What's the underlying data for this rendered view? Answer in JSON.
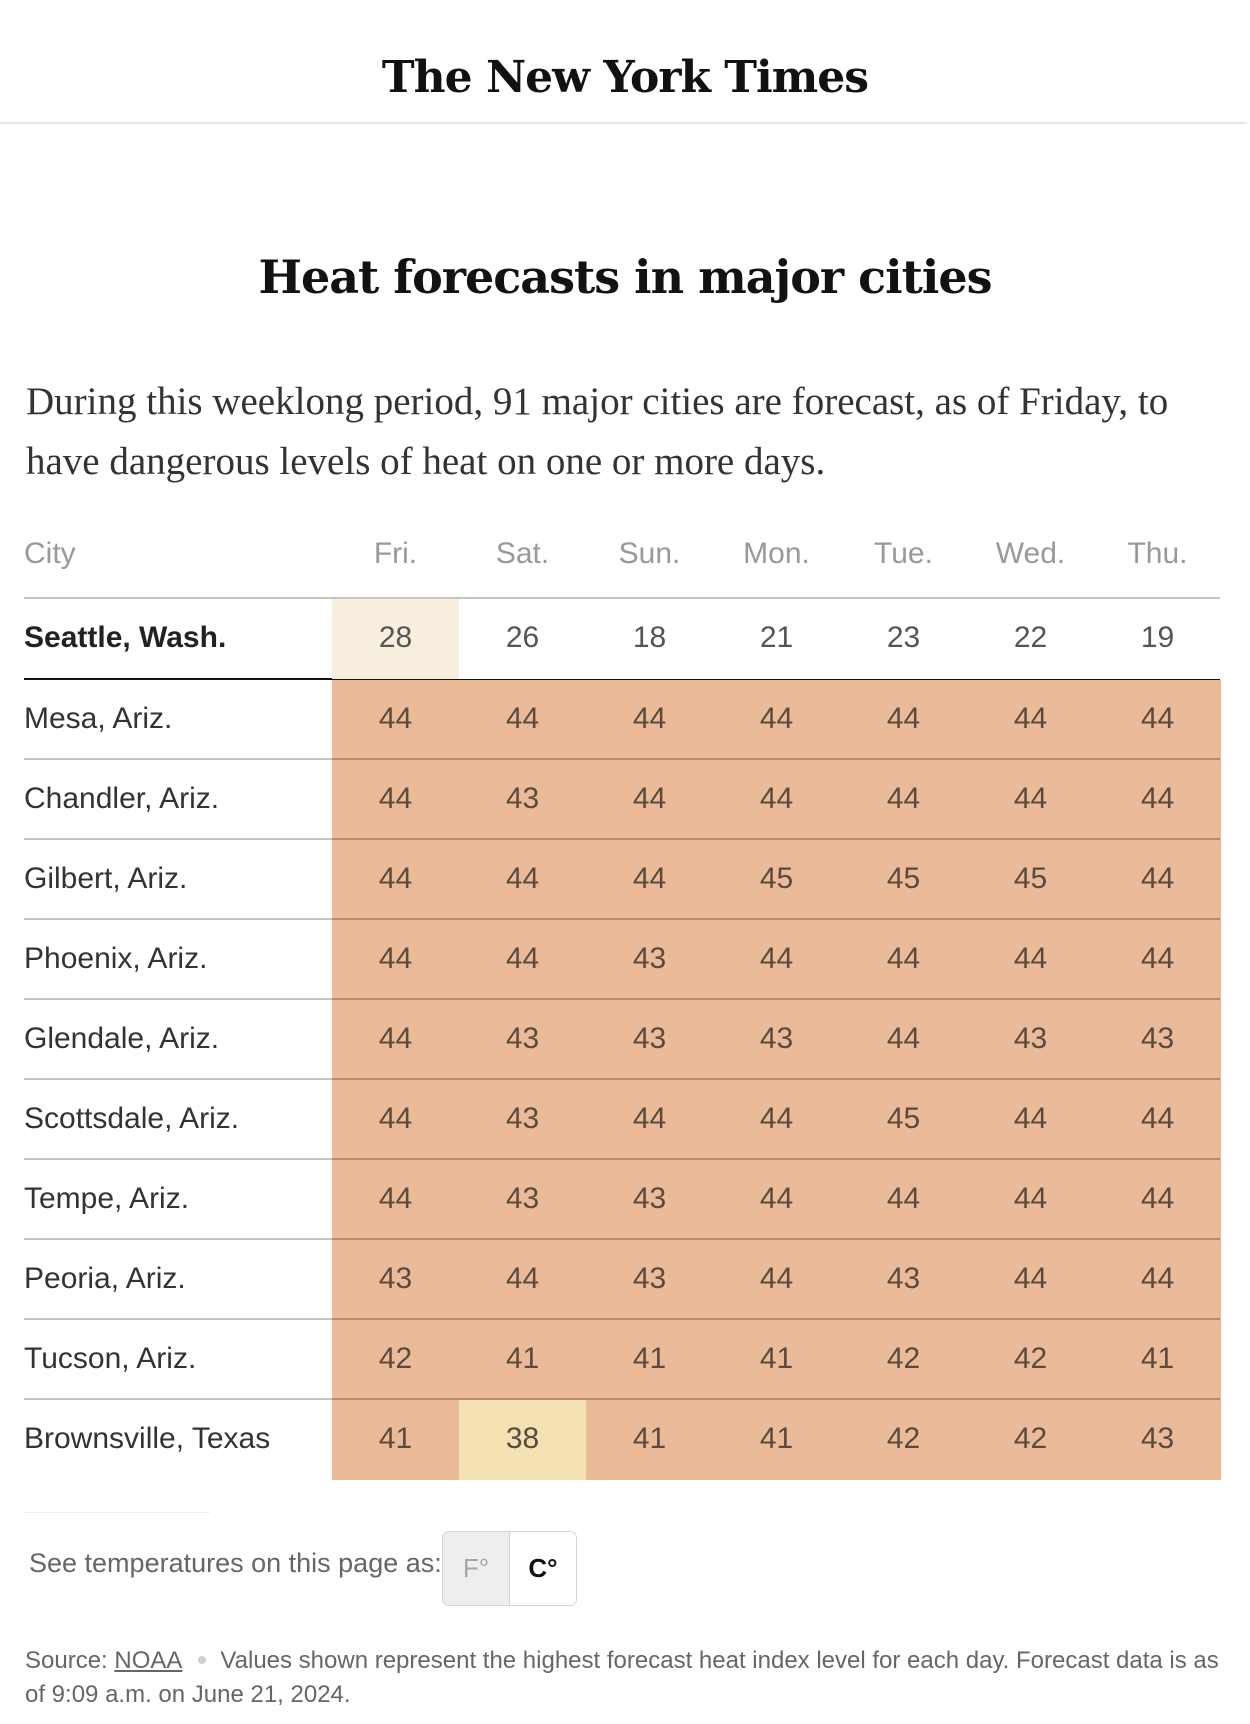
{
  "masthead": {
    "logo_text": "The New York Times"
  },
  "headline": "Heat forecasts in major cities",
  "intro": "During this weeklong period, 91 major cities are forecast, as of Friday, to have dangerous levels of heat on one or more days.",
  "colors": {
    "danger": "#EBBA98",
    "caution": "#F4E1B2",
    "mild": "#F7EEDD",
    "none": "#FFFFFF"
  },
  "chart_data": {
    "type": "table",
    "title": "Heat forecasts in major cities",
    "columns": [
      "City",
      "Fri.",
      "Sat.",
      "Sun.",
      "Mon.",
      "Tue.",
      "Wed.",
      "Thu."
    ],
    "unit": "C°",
    "rows": [
      {
        "city": "Seattle, Wash.",
        "values": [
          28,
          26,
          18,
          21,
          23,
          22,
          19
        ],
        "levels": [
          "mild",
          "none",
          "none",
          "none",
          "none",
          "none",
          "none"
        ],
        "highlight": true
      },
      {
        "city": "Mesa, Ariz.",
        "values": [
          44,
          44,
          44,
          44,
          44,
          44,
          44
        ],
        "levels": [
          "danger",
          "danger",
          "danger",
          "danger",
          "danger",
          "danger",
          "danger"
        ]
      },
      {
        "city": "Chandler, Ariz.",
        "values": [
          44,
          43,
          44,
          44,
          44,
          44,
          44
        ],
        "levels": [
          "danger",
          "danger",
          "danger",
          "danger",
          "danger",
          "danger",
          "danger"
        ]
      },
      {
        "city": "Gilbert, Ariz.",
        "values": [
          44,
          44,
          44,
          45,
          45,
          45,
          44
        ],
        "levels": [
          "danger",
          "danger",
          "danger",
          "danger",
          "danger",
          "danger",
          "danger"
        ]
      },
      {
        "city": "Phoenix, Ariz.",
        "values": [
          44,
          44,
          43,
          44,
          44,
          44,
          44
        ],
        "levels": [
          "danger",
          "danger",
          "danger",
          "danger",
          "danger",
          "danger",
          "danger"
        ]
      },
      {
        "city": "Glendale, Ariz.",
        "values": [
          44,
          43,
          43,
          43,
          44,
          43,
          43
        ],
        "levels": [
          "danger",
          "danger",
          "danger",
          "danger",
          "danger",
          "danger",
          "danger"
        ]
      },
      {
        "city": "Scottsdale, Ariz.",
        "values": [
          44,
          43,
          44,
          44,
          45,
          44,
          44
        ],
        "levels": [
          "danger",
          "danger",
          "danger",
          "danger",
          "danger",
          "danger",
          "danger"
        ]
      },
      {
        "city": "Tempe, Ariz.",
        "values": [
          44,
          43,
          43,
          44,
          44,
          44,
          44
        ],
        "levels": [
          "danger",
          "danger",
          "danger",
          "danger",
          "danger",
          "danger",
          "danger"
        ]
      },
      {
        "city": "Peoria, Ariz.",
        "values": [
          43,
          44,
          43,
          44,
          43,
          44,
          44
        ],
        "levels": [
          "danger",
          "danger",
          "danger",
          "danger",
          "danger",
          "danger",
          "danger"
        ]
      },
      {
        "city": "Tucson, Ariz.",
        "values": [
          42,
          41,
          41,
          41,
          42,
          42,
          41
        ],
        "levels": [
          "danger",
          "danger",
          "danger",
          "danger",
          "danger",
          "danger",
          "danger"
        ]
      },
      {
        "city": "Brownsville, Texas",
        "values": [
          41,
          38,
          41,
          41,
          42,
          42,
          43
        ],
        "levels": [
          "danger",
          "caution",
          "danger",
          "danger",
          "danger",
          "danger",
          "danger"
        ]
      }
    ]
  },
  "units_toggle": {
    "label": "See temperatures on this page as:",
    "options": [
      "F°",
      "C°"
    ],
    "selected": "C°"
  },
  "footer": {
    "source_label": "Source:",
    "source_link": "NOAA",
    "note": "Values shown represent the highest forecast heat index level for each day. Forecast data is as of 9:09 a.m. on June 21, 2024."
  }
}
